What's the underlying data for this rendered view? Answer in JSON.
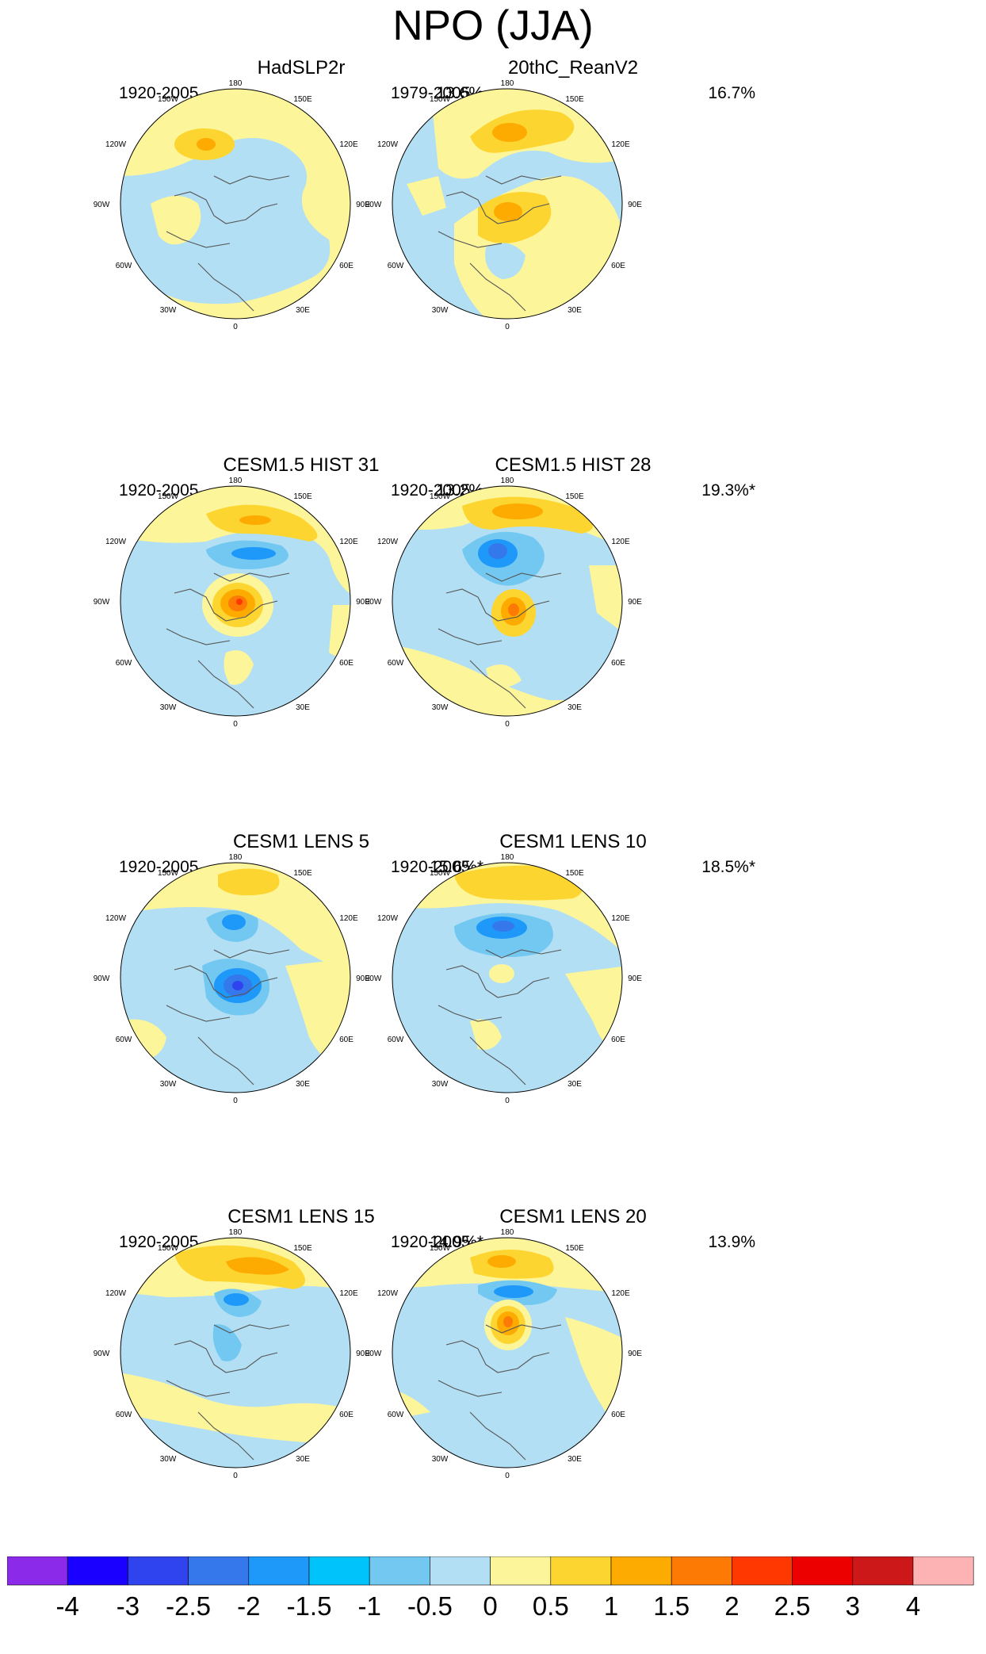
{
  "figure": {
    "title": "NPO (JJA)"
  },
  "panels": [
    {
      "title": "HadSLP2r",
      "period": "1920-2005",
      "percent": "13.6%"
    },
    {
      "title": "20thC_ReanV2",
      "period": "1979-2005",
      "percent": "16.7%"
    },
    {
      "title": "CESM1.5 HIST 31",
      "period": "1920-2005",
      "percent": "13.2%"
    },
    {
      "title": "CESM1.5 HIST 28",
      "period": "1920-2005",
      "percent": "19.3%*"
    },
    {
      "title": "CESM1 LENS 5",
      "period": "1920-2005",
      "percent": "15.6%*"
    },
    {
      "title": "CESM1 LENS 10",
      "period": "1920-2005",
      "percent": "18.5%*"
    },
    {
      "title": "CESM1 LENS 15",
      "period": "1920-2005",
      "percent": "14.9%*"
    },
    {
      "title": "CESM1 LENS 20",
      "period": "1920-2005",
      "percent": "13.9%"
    }
  ],
  "longitude_labels": {
    "n180": "180",
    "w150": "150W",
    "e150": "150E",
    "w120": "120W",
    "e120": "120E",
    "w90": "90W",
    "e90": "90E",
    "w60": "60W",
    "e60": "60E",
    "w30": "30W",
    "e30": "30E",
    "n0": "0"
  },
  "colorbar": {
    "colors": [
      "#8c2aea",
      "#1a00ff",
      "#2f44ef",
      "#3478ec",
      "#1e99fa",
      "#00c3fc",
      "#73c8f1",
      "#b2dff3",
      "#fdf59a",
      "#fdd530",
      "#fdab00",
      "#fd7a05",
      "#ff3700",
      "#ec0000",
      "#cc1818",
      "#fdb3b3"
    ],
    "labels": [
      "-4",
      "-3",
      "-2.5",
      "-2",
      "-1.5",
      "-1",
      "-0.5",
      "0",
      "0.5",
      "1",
      "1.5",
      "2",
      "2.5",
      "3",
      "4"
    ]
  }
}
